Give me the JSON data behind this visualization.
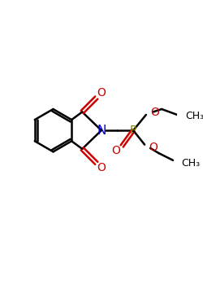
{
  "bg_color": "#ffffff",
  "atom_colors": {
    "C": "#000000",
    "N": "#0000cc",
    "O": "#cc0000",
    "P": "#808000"
  },
  "bond_color": "#000000",
  "linewidth": 1.8,
  "figsize": [
    2.5,
    3.5
  ],
  "dpi": 100
}
